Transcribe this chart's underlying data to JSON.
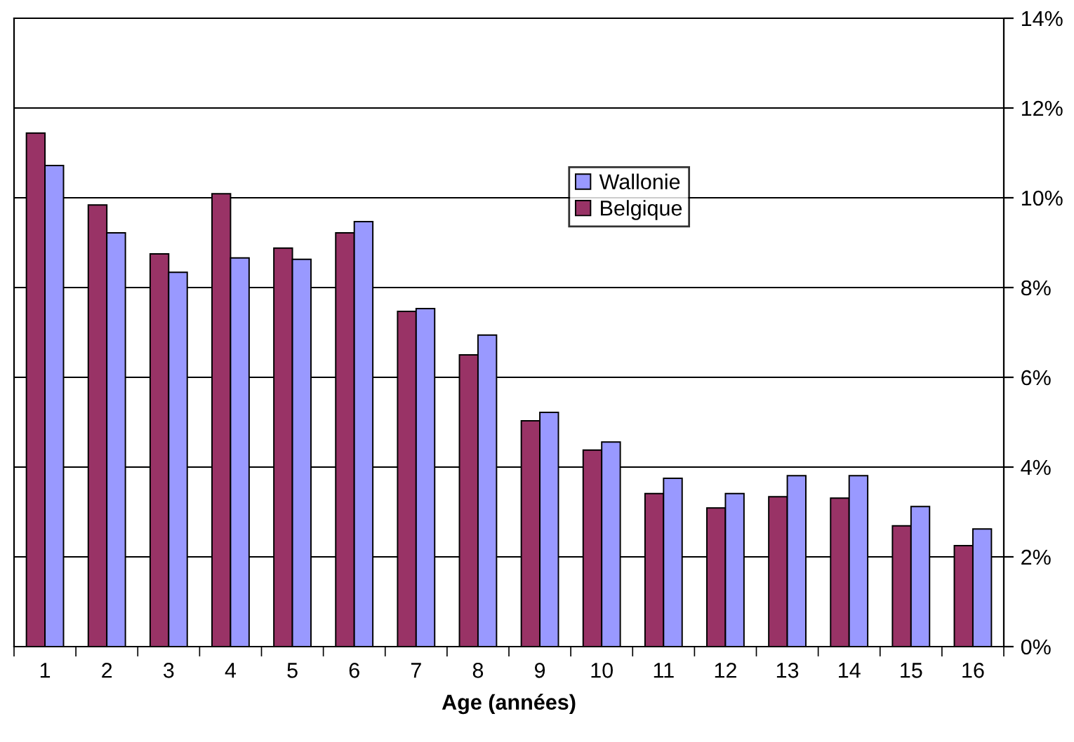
{
  "chart_data": {
    "type": "bar",
    "xlabel": "Age (années)",
    "categories": [
      "1",
      "2",
      "3",
      "4",
      "5",
      "6",
      "7",
      "8",
      "9",
      "10",
      "11",
      "12",
      "13",
      "14",
      "15",
      "16"
    ],
    "series": [
      {
        "name": "Belgique",
        "color": "#993366",
        "values": [
          11.44,
          9.84,
          8.75,
          10.09,
          8.88,
          9.22,
          7.47,
          6.5,
          5.03,
          4.38,
          3.41,
          3.09,
          3.34,
          3.31,
          2.69,
          2.25
        ]
      },
      {
        "name": "Wallonie",
        "color": "#9999ff",
        "values": [
          10.72,
          9.22,
          8.34,
          8.66,
          8.63,
          9.47,
          7.53,
          6.94,
          5.22,
          4.56,
          3.75,
          3.41,
          3.81,
          3.81,
          3.12,
          2.62
        ]
      }
    ],
    "ylim": [
      0,
      14
    ],
    "yticks": [
      {
        "value": 0,
        "label": "0%"
      },
      {
        "value": 2,
        "label": "2%"
      },
      {
        "value": 4,
        "label": "4%"
      },
      {
        "value": 6,
        "label": "6%"
      },
      {
        "value": 8,
        "label": "8%"
      },
      {
        "value": 10,
        "label": "10%"
      },
      {
        "value": 12,
        "label": "12%"
      },
      {
        "value": 14,
        "label": "14%"
      }
    ],
    "grid": "y",
    "legend": "top right"
  }
}
